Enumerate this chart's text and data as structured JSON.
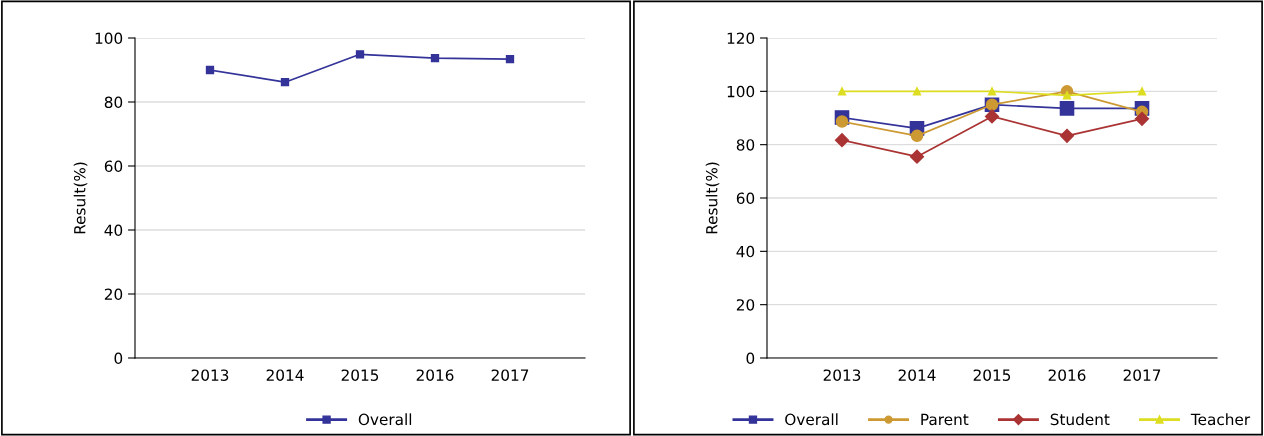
{
  "chart_data": [
    {
      "type": "line",
      "ylabel": "Result(%)",
      "categories": [
        "2013",
        "2014",
        "2015",
        "2016",
        "2017"
      ],
      "ylim": [
        0,
        100
      ],
      "yticks": [
        0,
        20,
        40,
        60,
        80,
        100
      ],
      "grid": "y",
      "legend": "bottom",
      "series": [
        {
          "name": "Overall",
          "color": "#333399",
          "marker": "square",
          "values": [
            90.0,
            86.2,
            94.9,
            93.7,
            93.4
          ]
        }
      ]
    },
    {
      "type": "line",
      "ylabel": "Result(%)",
      "categories": [
        "2013",
        "2014",
        "2015",
        "2016",
        "2017"
      ],
      "ylim": [
        0,
        120
      ],
      "yticks": [
        0,
        20,
        40,
        60,
        80,
        100,
        120
      ],
      "grid": "y",
      "legend": "bottom",
      "series": [
        {
          "name": "Overall",
          "color": "#333399",
          "marker": "square",
          "values": [
            90.2,
            86.1,
            95.0,
            93.6,
            93.6
          ]
        },
        {
          "name": "Parent",
          "color": "#cc9933",
          "marker": "circle",
          "values": [
            88.7,
            83.3,
            95.0,
            100.0,
            92.3
          ]
        },
        {
          "name": "Student",
          "color": "#aa3333",
          "marker": "diamond",
          "values": [
            81.7,
            75.5,
            90.6,
            83.3,
            89.7
          ]
        },
        {
          "name": "Teacher",
          "color": "#dddd22",
          "marker": "triangle",
          "values": [
            100.0,
            100.0,
            100.0,
            98.5,
            100.0
          ]
        }
      ]
    }
  ]
}
